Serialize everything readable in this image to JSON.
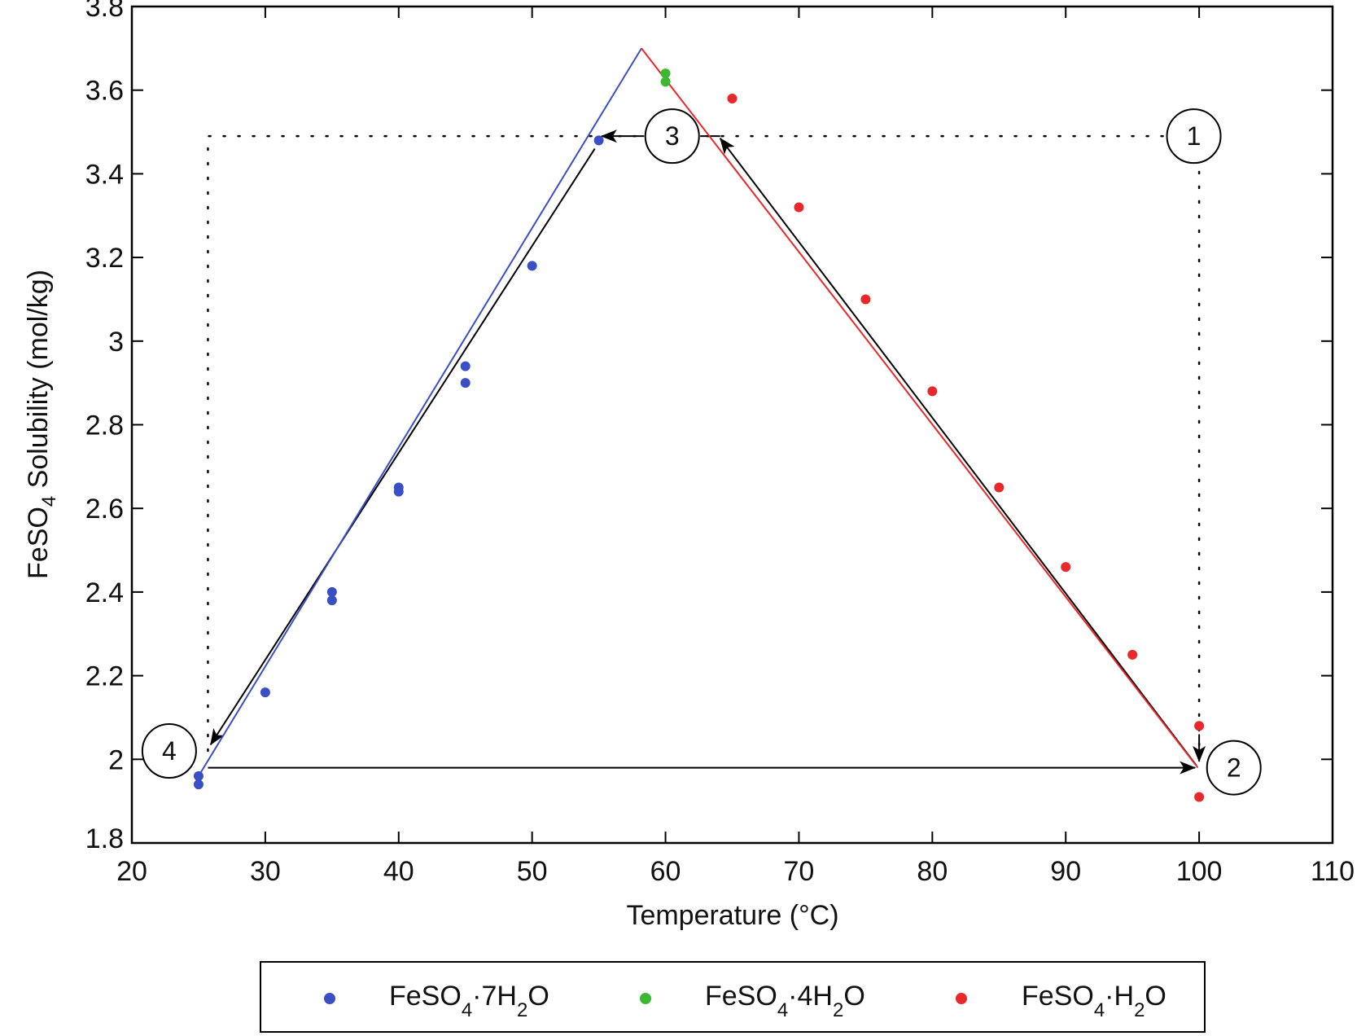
{
  "chart_data": {
    "type": "scatter",
    "title": "",
    "xlabel": "Temperature (°C)",
    "ylabel": "FeSO4 Solubility (mol/kg)",
    "ylabel_parts": {
      "main": "FeSO",
      "sub": "4",
      "rest": " Solubility (mol/kg)"
    },
    "xlim": [
      20,
      110
    ],
    "ylim": [
      1.8,
      3.8
    ],
    "xticks": [
      20,
      30,
      40,
      50,
      60,
      70,
      80,
      90,
      100,
      110
    ],
    "yticks": [
      1.8,
      2,
      2.2,
      2.4,
      2.6,
      2.8,
      3,
      3.2,
      3.4,
      3.6,
      3.8
    ],
    "ytick_labels": [
      "1.8",
      "2",
      "2.2",
      "2.4",
      "2.6",
      "2.8",
      "3",
      "3.2",
      "3.4",
      "3.6",
      "3.8"
    ],
    "grid": false,
    "legend_position": "bottom",
    "series": [
      {
        "name": "FeSO4·7H2O",
        "label_parts": [
          "FeSO",
          "4",
          "·7H",
          "2",
          "O"
        ],
        "color": "#3a4fc4",
        "points": [
          [
            25,
            1.96
          ],
          [
            25,
            1.94
          ],
          [
            30,
            2.16
          ],
          [
            35,
            2.4
          ],
          [
            35,
            2.38
          ],
          [
            40,
            2.65
          ],
          [
            40,
            2.64
          ],
          [
            45,
            2.94
          ],
          [
            45,
            2.9
          ],
          [
            50,
            3.18
          ],
          [
            55,
            3.48
          ]
        ],
        "fit_line": [
          [
            25,
            1.96
          ],
          [
            58.2,
            3.7
          ]
        ]
      },
      {
        "name": "FeSO4·4H2O",
        "label_parts": [
          "FeSO",
          "4",
          "·4H",
          "2",
          "O"
        ],
        "color": "#3cb832",
        "points": [
          [
            60,
            3.64
          ],
          [
            60,
            3.62
          ]
        ]
      },
      {
        "name": "FeSO4·H2O",
        "label_parts": [
          "FeSO",
          "4",
          "·H",
          "2",
          "O"
        ],
        "color": "#e8282a",
        "points": [
          [
            65,
            3.58
          ],
          [
            70,
            3.32
          ],
          [
            75,
            3.1
          ],
          [
            80,
            2.88
          ],
          [
            85,
            2.65
          ],
          [
            90,
            2.46
          ],
          [
            95,
            2.25
          ],
          [
            100,
            2.08
          ],
          [
            100,
            1.91
          ]
        ],
        "fit_line": [
          [
            58.2,
            3.7
          ],
          [
            99.9,
            1.98
          ]
        ]
      }
    ],
    "annotations": [
      {
        "label": "1",
        "x": 99.6,
        "y": 3.49
      },
      {
        "label": "2",
        "x": 102.6,
        "y": 1.98
      },
      {
        "label": "3",
        "x": 60.5,
        "y": 3.49
      },
      {
        "label": "4",
        "x": 22.8,
        "y": 2.02
      }
    ],
    "cycle_path": {
      "dotted": [
        [
          [
            25.7,
            2.02
          ],
          [
            25.7,
            3.49
          ],
          [
            97.5,
            3.49
          ]
        ],
        [
          [
            100,
            3.44
          ],
          [
            100,
            2.01
          ]
        ]
      ],
      "arrows": [
        {
          "from": [
            25.7,
            1.98
          ],
          "to": [
            99.8,
            1.98
          ]
        },
        {
          "from": [
            99.8,
            1.98
          ],
          "to": [
            64.1,
            3.49
          ]
        },
        {
          "from": [
            64.1,
            3.49
          ],
          "to": [
            55,
            3.49
          ]
        },
        {
          "from": [
            55,
            3.475
          ],
          "to": [
            25.8,
            2.03
          ]
        }
      ]
    }
  }
}
